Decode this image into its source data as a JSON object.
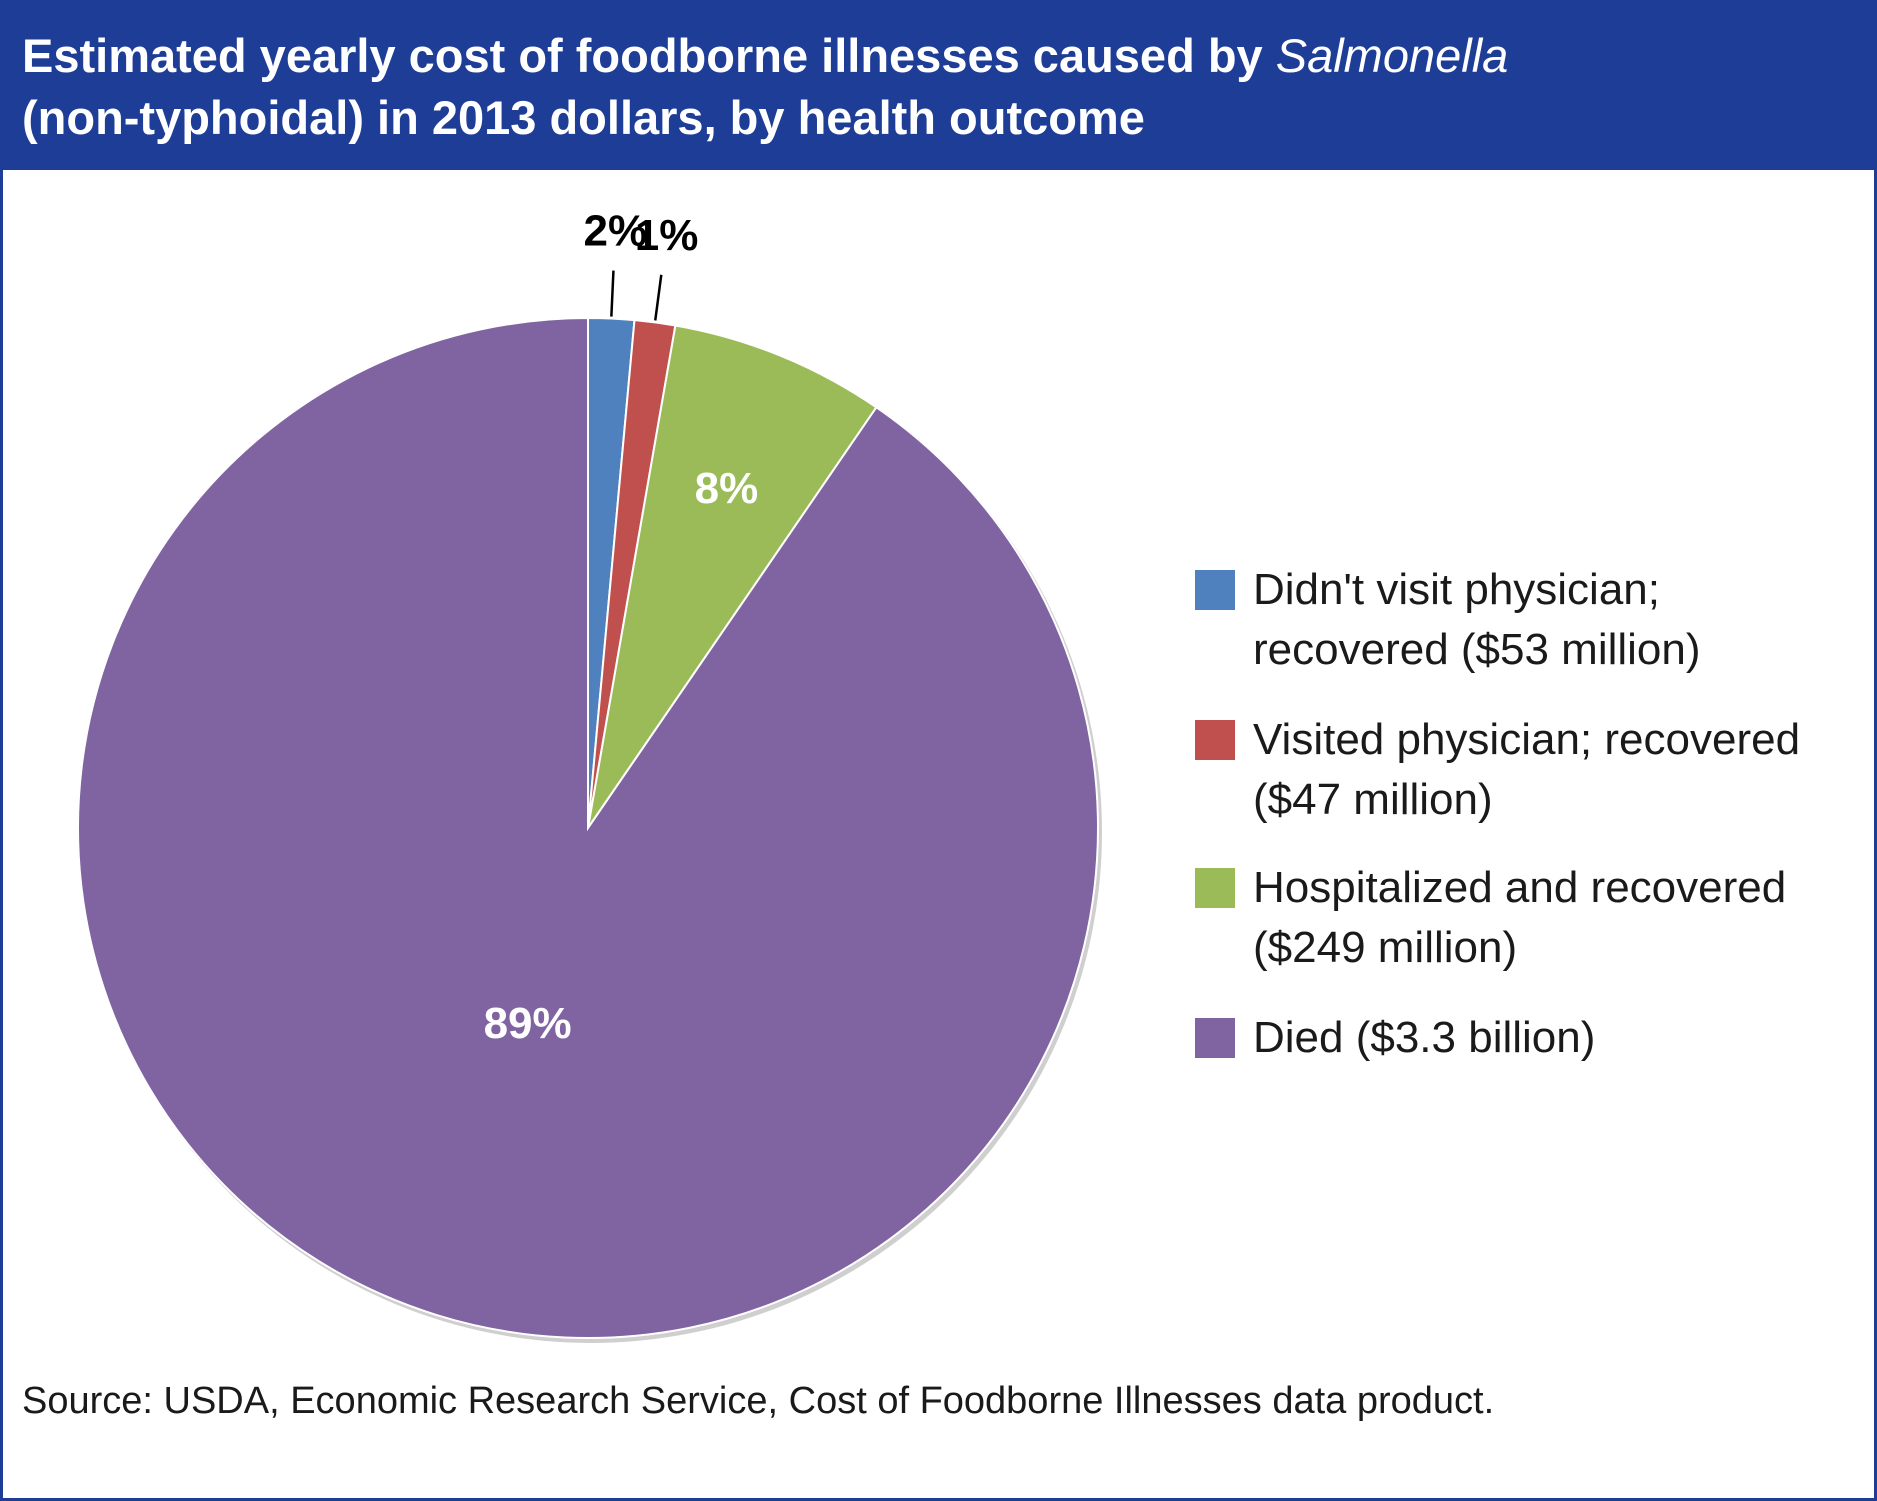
{
  "title": {
    "line1_prefix": "Estimated yearly cost of foodborne illnesses caused by ",
    "line1_italic": "Salmonella",
    "line2": "(non-typhoidal) in 2013 dollars, by health outcome"
  },
  "source": "Source: USDA, Economic Research Service, Cost of Foodborne Illnesses data product.",
  "colors": {
    "title_bg": "#1e3d96",
    "didnt_visit": "#4e81bd",
    "visited": "#c0504d",
    "hospitalized": "#9bbb59",
    "died": "#8064a2"
  },
  "chart_data": {
    "type": "pie",
    "title": "Estimated yearly cost of foodborne illnesses caused by Salmonella (non-typhoidal) in 2013 dollars, by health outcome",
    "legend_placement": "right",
    "slices": [
      {
        "key": "didnt_visit",
        "label_lines": [
          "Didn't visit physician;",
          "recovered ($53 million)"
        ],
        "value_musd": 53,
        "percent": 2,
        "percent_label": "2%",
        "color": "#4e81bd"
      },
      {
        "key": "visited",
        "label_lines": [
          "Visited physician; recovered",
          "($47 million)"
        ],
        "value_musd": 47,
        "percent": 1,
        "percent_label": "1%",
        "color": "#c0504d"
      },
      {
        "key": "hospitalized",
        "label_lines": [
          "Hospitalized and recovered",
          "($249 million)"
        ],
        "value_musd": 249,
        "percent": 8,
        "percent_label": "8%",
        "color": "#9bbb59"
      },
      {
        "key": "died",
        "label_lines": [
          "Died ($3.3 billion)"
        ],
        "value_musd": 3300,
        "percent": 89,
        "percent_label": "89%",
        "color": "#8064a2"
      }
    ]
  }
}
